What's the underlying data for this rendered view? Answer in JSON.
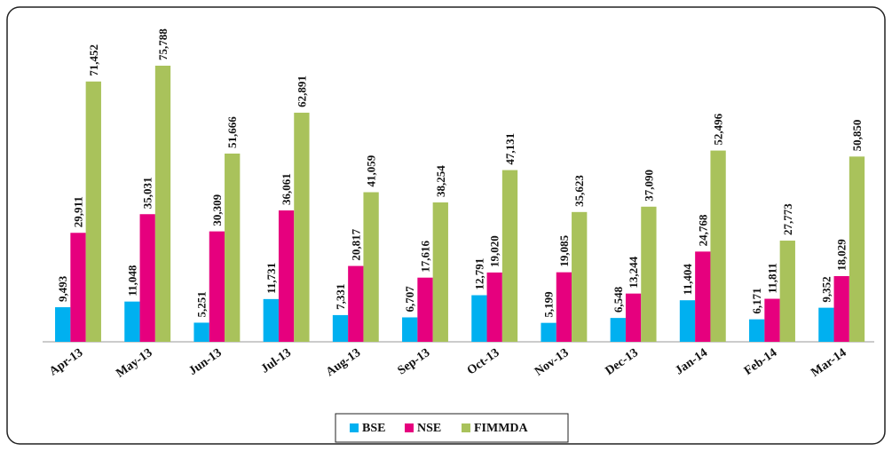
{
  "chart_data": {
    "type": "bar",
    "categories": [
      "Apr-13",
      "May-13",
      "Jun-13",
      "Jul-13",
      "Aug-13",
      "Sep-13",
      "Oct-13",
      "Nov-13",
      "Dec-13",
      "Jan-14",
      "Feb-14",
      "Mar-14"
    ],
    "series": [
      {
        "name": "BSE",
        "color": "#00b0f0",
        "values": [
          9493,
          11048,
          5251,
          11731,
          7331,
          6707,
          12791,
          5199,
          6548,
          11404,
          6171,
          9352
        ],
        "value_labels": [
          "9,493",
          "11,048",
          "5,251",
          "11,731",
          "7,331",
          "6,707",
          "12,791",
          "5,199",
          "6,548",
          "11,404",
          "6,171",
          "9,352"
        ]
      },
      {
        "name": "NSE",
        "color": "#e6007e",
        "values": [
          29911,
          35031,
          30309,
          36061,
          20817,
          17616,
          19020,
          19085,
          13244,
          24768,
          11811,
          18029
        ],
        "value_labels": [
          "29,911",
          "35,031",
          "30,309",
          "36,061",
          "20,817",
          "17,616",
          "19,020",
          "19,085",
          "13,244",
          "24,768",
          "11,811",
          "18,029"
        ]
      },
      {
        "name": "FIMMDA",
        "color": "#a9c25b",
        "values": [
          71452,
          75788,
          51666,
          62891,
          41059,
          38254,
          47131,
          35623,
          37090,
          52496,
          27773,
          50850
        ],
        "value_labels": [
          "71,452",
          "75,788",
          "51,666",
          "62,891",
          "41,059",
          "38,254",
          "47,131",
          "35,623",
          "37,090",
          "52,496",
          "27,773",
          "50,850"
        ]
      }
    ],
    "legend": "bottom"
  }
}
